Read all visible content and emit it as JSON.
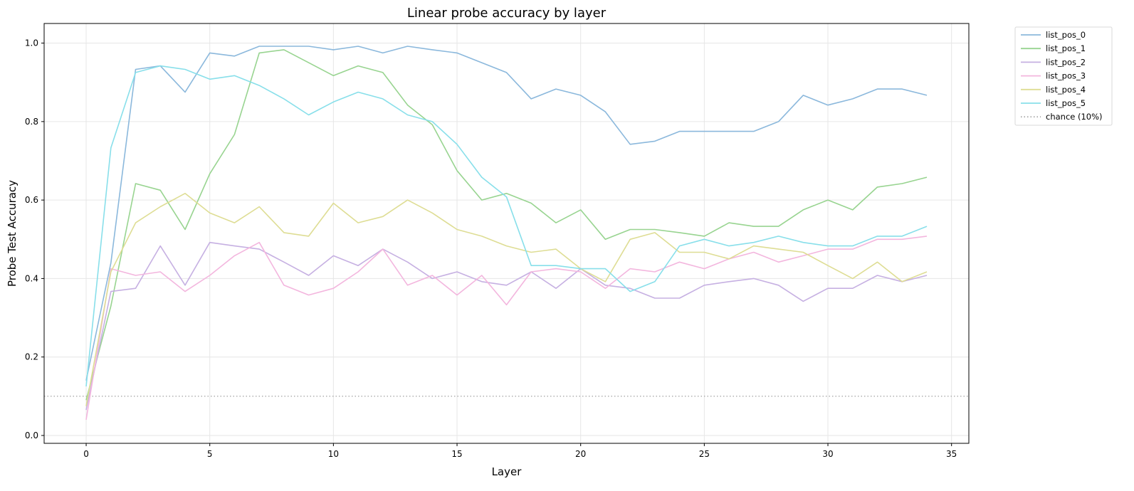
{
  "chart_data": {
    "type": "line",
    "title": "Linear probe accuracy by layer",
    "xlabel": "Layer",
    "ylabel": "Probe Test Accuracy",
    "xlim": [
      -1.7,
      35.7
    ],
    "ylim": [
      -0.02,
      1.05
    ],
    "xticks": [
      0,
      5,
      10,
      15,
      20,
      25,
      30,
      35
    ],
    "yticks": [
      0.0,
      0.2,
      0.4,
      0.6,
      0.8,
      1.0
    ],
    "xtick_labels": [
      "0",
      "5",
      "10",
      "15",
      "20",
      "25",
      "30",
      "35"
    ],
    "ytick_labels": [
      "0.0",
      "0.2",
      "0.4",
      "0.6",
      "0.8",
      "1.0"
    ],
    "grid": true,
    "legend_position": "outside-top-right",
    "x": [
      0,
      1,
      2,
      3,
      4,
      5,
      6,
      7,
      8,
      9,
      10,
      11,
      12,
      13,
      14,
      15,
      16,
      17,
      18,
      19,
      20,
      21,
      22,
      23,
      24,
      25,
      26,
      27,
      28,
      29,
      30,
      31,
      32,
      33,
      34
    ],
    "series": [
      {
        "name": "list_pos_0",
        "color": "#8bb8dc",
        "values": [
          0.14,
          0.44,
          0.933,
          0.942,
          0.875,
          0.975,
          0.967,
          0.992,
          0.992,
          0.992,
          0.983,
          0.992,
          0.975,
          0.992,
          0.983,
          0.975,
          0.95,
          0.925,
          0.858,
          0.883,
          0.867,
          0.825,
          0.742,
          0.75,
          0.775,
          0.775,
          0.775,
          0.775,
          0.8,
          0.867,
          0.842,
          0.858,
          0.883,
          0.883,
          0.867
        ]
      },
      {
        "name": "list_pos_1",
        "color": "#98d490",
        "values": [
          0.09,
          0.33,
          0.642,
          0.625,
          0.525,
          0.667,
          0.767,
          0.975,
          0.983,
          0.95,
          0.917,
          0.942,
          0.925,
          0.842,
          0.792,
          0.675,
          0.6,
          0.617,
          0.592,
          0.542,
          0.575,
          0.5,
          0.525,
          0.525,
          0.517,
          0.508,
          0.542,
          0.533,
          0.533,
          0.575,
          0.6,
          0.575,
          0.633,
          0.642,
          0.658
        ]
      },
      {
        "name": "list_pos_2",
        "color": "#c6b0e2",
        "values": [
          0.065,
          0.367,
          0.375,
          0.483,
          0.383,
          0.492,
          0.483,
          0.475,
          0.442,
          0.408,
          0.458,
          0.433,
          0.475,
          0.442,
          0.4,
          0.417,
          0.392,
          0.383,
          0.417,
          0.375,
          0.425,
          0.383,
          0.375,
          0.35,
          0.35,
          0.383,
          0.392,
          0.4,
          0.383,
          0.342,
          0.375,
          0.375,
          0.408,
          0.392,
          0.408
        ]
      },
      {
        "name": "list_pos_3",
        "color": "#f3b6de",
        "values": [
          0.04,
          0.425,
          0.408,
          0.417,
          0.367,
          0.408,
          0.458,
          0.492,
          0.383,
          0.358,
          0.375,
          0.417,
          0.475,
          0.383,
          0.408,
          0.358,
          0.408,
          0.333,
          0.417,
          0.425,
          0.417,
          0.375,
          0.425,
          0.417,
          0.442,
          0.425,
          0.45,
          0.467,
          0.442,
          0.458,
          0.475,
          0.475,
          0.5,
          0.5,
          0.508
        ]
      },
      {
        "name": "list_pos_4",
        "color": "#dedd94",
        "values": [
          0.075,
          0.417,
          0.542,
          0.583,
          0.617,
          0.567,
          0.542,
          0.583,
          0.517,
          0.508,
          0.592,
          0.542,
          0.558,
          0.6,
          0.567,
          0.525,
          0.508,
          0.483,
          0.467,
          0.475,
          0.425,
          0.392,
          0.5,
          0.517,
          0.467,
          0.467,
          0.45,
          0.483,
          0.475,
          0.467,
          0.433,
          0.4,
          0.442,
          0.392,
          0.417
        ]
      },
      {
        "name": "list_pos_5",
        "color": "#88dfea",
        "values": [
          0.125,
          0.733,
          0.925,
          0.942,
          0.933,
          0.908,
          0.917,
          0.892,
          0.858,
          0.817,
          0.85,
          0.875,
          0.858,
          0.817,
          0.8,
          0.742,
          0.658,
          0.608,
          0.433,
          0.433,
          0.425,
          0.425,
          0.367,
          0.392,
          0.483,
          0.5,
          0.483,
          0.492,
          0.508,
          0.492,
          0.483,
          0.483,
          0.508,
          0.508,
          0.533
        ]
      }
    ],
    "reference_lines": [
      {
        "name": "chance (10%)",
        "y": 0.1,
        "color": "#aaaaaa",
        "style": "dotted"
      }
    ]
  }
}
